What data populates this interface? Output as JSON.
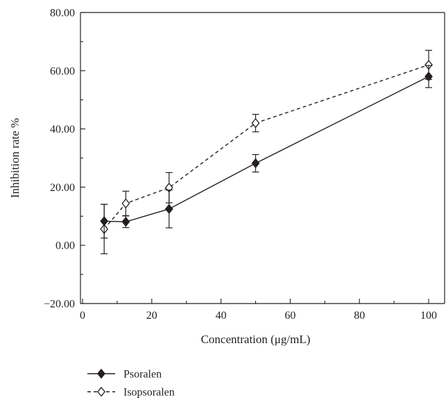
{
  "chart_data": {
    "type": "line",
    "title": "",
    "xlabel": "Concentration (μg/mL)",
    "ylabel": "Inhibition rate %",
    "xlim": [
      0,
      100
    ],
    "ylim": [
      -20,
      80
    ],
    "x_ticks": [
      0,
      20,
      40,
      60,
      80,
      100
    ],
    "x_tick_labels": [
      "0",
      "20",
      "40",
      "60",
      "80",
      "100"
    ],
    "y_ticks": [
      -20,
      0,
      20,
      40,
      60,
      80
    ],
    "y_tick_labels": [
      "−20.00",
      "0.00",
      "20.00",
      "40.00",
      "60.00",
      "80.00"
    ],
    "grid": false,
    "legend_position": "bottom-left, below the plot",
    "series": [
      {
        "name": "Psoralen",
        "color": "#231f20",
        "line_style": "solid",
        "marker": "filled-diamond",
        "x": [
          6.25,
          12.5,
          25,
          50,
          100
        ],
        "y": [
          8.3,
          8.1,
          12.5,
          28.2,
          58.0
        ],
        "error": [
          5.8,
          2.0,
          6.5,
          3.0,
          3.8
        ]
      },
      {
        "name": "Isopsoralen",
        "color": "#231f20",
        "line_style": "dashed",
        "marker": "open-diamond",
        "x": [
          6.25,
          12.5,
          25,
          50,
          100
        ],
        "y": [
          5.6,
          14.4,
          19.8,
          42.0,
          62.0
        ],
        "error": [
          8.5,
          4.2,
          5.2,
          3.0,
          5.0
        ]
      }
    ]
  }
}
